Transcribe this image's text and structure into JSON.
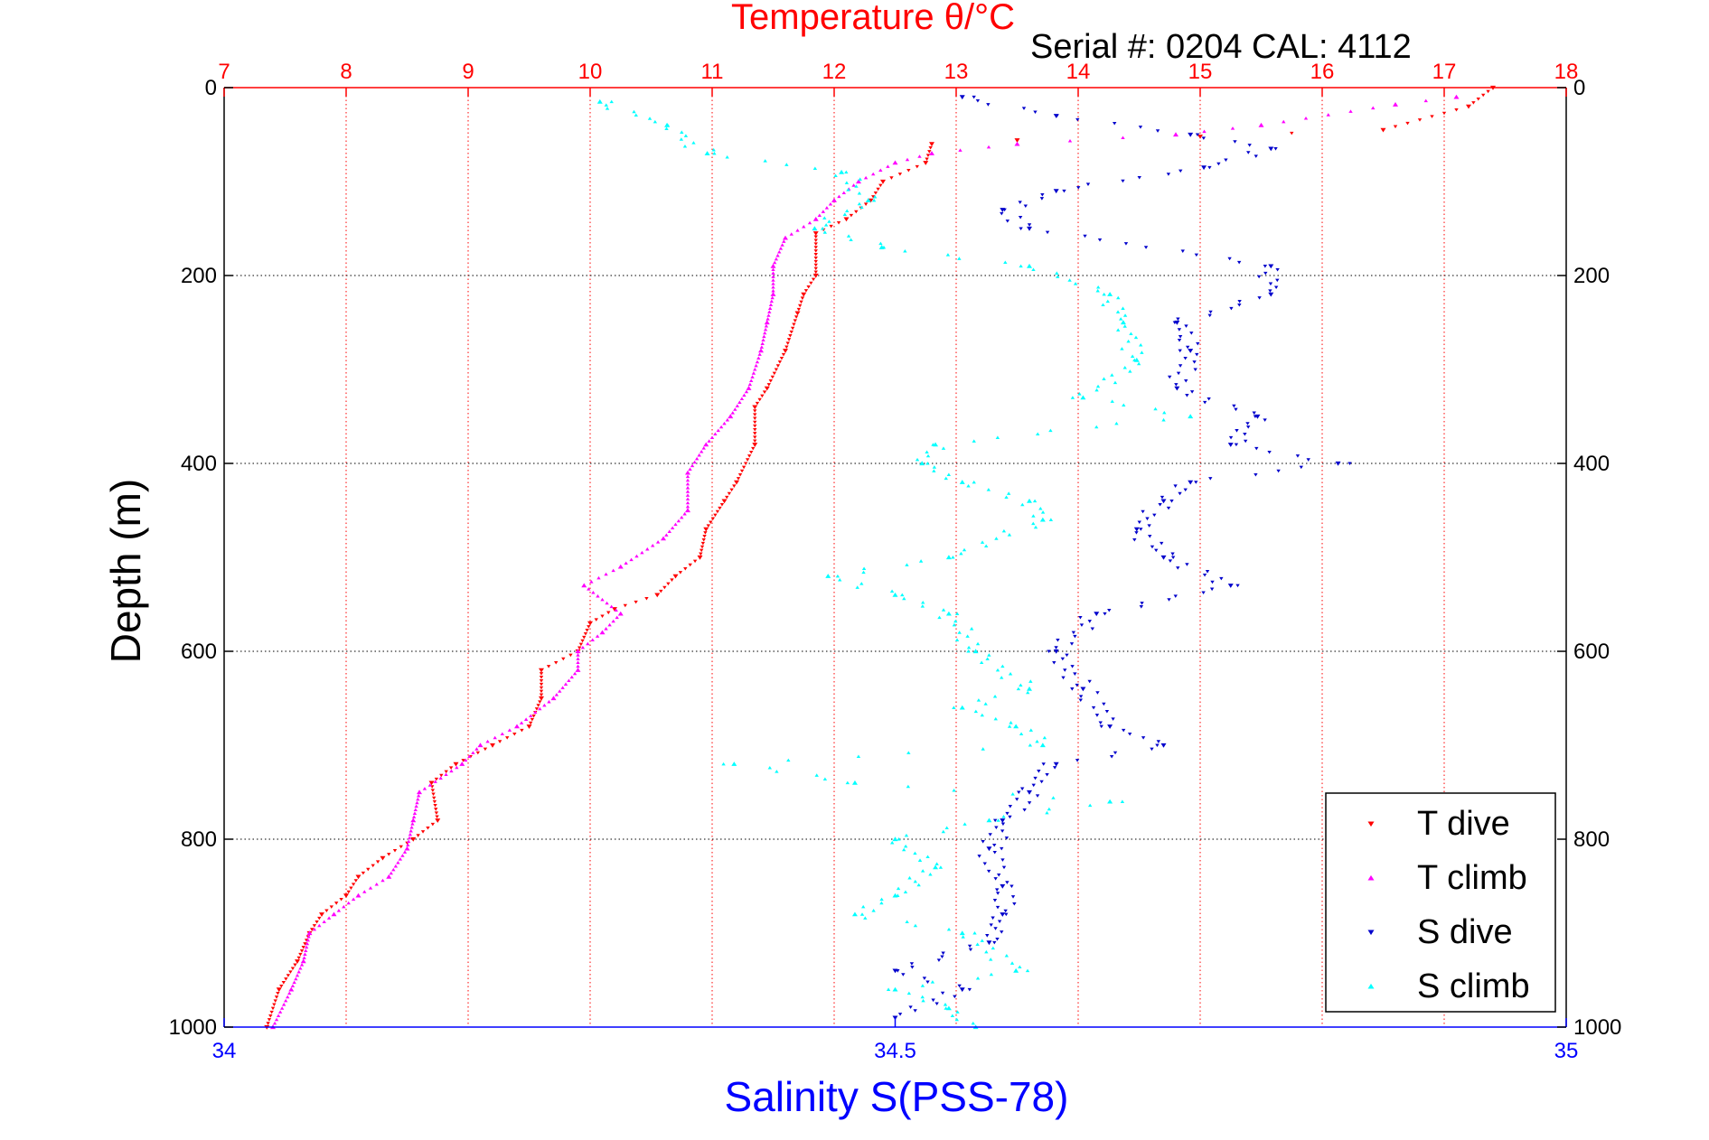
{
  "chart_data": {
    "type": "scatter",
    "title": "Temperature θ/°C",
    "subtitle": "Serial #: 0204  CAL: 4112",
    "ylabel": "Depth (m)",
    "xlabel": "Salinity S(PSS-78)",
    "grid": true,
    "legend_position": "bottom-right",
    "y_axis": {
      "reversed": true,
      "ylim": [
        0,
        1000
      ],
      "ticks": [
        0,
        200,
        400,
        600,
        800,
        1000
      ]
    },
    "top_axis": {
      "quantity": "temperature",
      "xlim": [
        7,
        18
      ],
      "ticks": [
        7,
        8,
        9,
        10,
        11,
        12,
        13,
        14,
        15,
        16,
        17,
        18
      ]
    },
    "bottom_axis": {
      "quantity": "salinity",
      "xlim": [
        34,
        35
      ],
      "ticks": [
        34,
        34.5,
        35
      ]
    },
    "colors": {
      "title": "#ff0000",
      "top_axis": "#ff0000",
      "bottom_axis": "#0000ff",
      "axes": "#000000"
    },
    "series": [
      {
        "name": "T dive",
        "axis": "top",
        "color": "#ff0000",
        "marker": "triangle-down",
        "points": [
          [
            17.4,
            0
          ],
          [
            17.2,
            20
          ],
          [
            16.5,
            45
          ],
          [
            15.0,
            52
          ],
          [
            13.5,
            56
          ],
          [
            12.8,
            60
          ],
          [
            12.75,
            80
          ],
          [
            12.4,
            100
          ],
          [
            12.3,
            120
          ],
          [
            12.1,
            140
          ],
          [
            11.85,
            155
          ],
          [
            11.85,
            200
          ],
          [
            11.75,
            220
          ],
          [
            11.7,
            240
          ],
          [
            11.6,
            280
          ],
          [
            11.45,
            320
          ],
          [
            11.35,
            340
          ],
          [
            11.35,
            380
          ],
          [
            11.2,
            420
          ],
          [
            11.1,
            440
          ],
          [
            10.95,
            470
          ],
          [
            10.9,
            500
          ],
          [
            10.7,
            520
          ],
          [
            10.55,
            540
          ],
          [
            10.2,
            555
          ],
          [
            10.0,
            570
          ],
          [
            9.9,
            600
          ],
          [
            9.6,
            620
          ],
          [
            9.6,
            650
          ],
          [
            9.5,
            680
          ],
          [
            9.2,
            700
          ],
          [
            8.9,
            720
          ],
          [
            8.7,
            740
          ],
          [
            8.75,
            780
          ],
          [
            8.55,
            800
          ],
          [
            8.3,
            820
          ],
          [
            8.1,
            840
          ],
          [
            8.0,
            860
          ],
          [
            7.8,
            880
          ],
          [
            7.7,
            900
          ],
          [
            7.6,
            930
          ],
          [
            7.45,
            960
          ],
          [
            7.35,
            1000
          ]
        ]
      },
      {
        "name": "T climb",
        "axis": "top",
        "color": "#ff00ff",
        "marker": "triangle-up",
        "points": [
          [
            17.1,
            10
          ],
          [
            16.6,
            18
          ],
          [
            15.5,
            40
          ],
          [
            14.8,
            50
          ],
          [
            13.5,
            60
          ],
          [
            12.8,
            70
          ],
          [
            12.5,
            80
          ],
          [
            12.2,
            100
          ],
          [
            12.0,
            120
          ],
          [
            11.85,
            140
          ],
          [
            11.6,
            160
          ],
          [
            11.5,
            190
          ],
          [
            11.5,
            220
          ],
          [
            11.45,
            250
          ],
          [
            11.4,
            280
          ],
          [
            11.3,
            320
          ],
          [
            11.15,
            350
          ],
          [
            10.95,
            380
          ],
          [
            10.8,
            410
          ],
          [
            10.8,
            450
          ],
          [
            10.6,
            480
          ],
          [
            10.25,
            510
          ],
          [
            9.95,
            530
          ],
          [
            10.25,
            560
          ],
          [
            10.1,
            580
          ],
          [
            9.9,
            600
          ],
          [
            9.9,
            620
          ],
          [
            9.7,
            650
          ],
          [
            9.4,
            680
          ],
          [
            9.1,
            700
          ],
          [
            8.95,
            720
          ],
          [
            8.6,
            750
          ],
          [
            8.55,
            780
          ],
          [
            8.5,
            810
          ],
          [
            8.35,
            840
          ],
          [
            8.1,
            860
          ],
          [
            7.9,
            880
          ],
          [
            7.7,
            900
          ],
          [
            7.65,
            930
          ],
          [
            7.55,
            960
          ],
          [
            7.4,
            1000
          ]
        ]
      },
      {
        "name": "S dive",
        "axis": "bottom",
        "color": "#0000cc",
        "marker": "triangle-down",
        "points": [
          [
            34.55,
            10
          ],
          [
            34.62,
            30
          ],
          [
            34.72,
            50
          ],
          [
            34.78,
            65
          ],
          [
            34.73,
            85
          ],
          [
            34.62,
            110
          ],
          [
            34.58,
            130
          ],
          [
            34.6,
            150
          ],
          [
            34.78,
            190
          ],
          [
            34.78,
            220
          ],
          [
            34.71,
            250
          ],
          [
            34.72,
            280
          ],
          [
            34.71,
            320
          ],
          [
            34.77,
            350
          ],
          [
            34.75,
            380
          ],
          [
            34.83,
            400
          ],
          [
            34.72,
            420
          ],
          [
            34.7,
            440
          ],
          [
            34.68,
            470
          ],
          [
            34.7,
            500
          ],
          [
            34.75,
            530
          ],
          [
            34.65,
            560
          ],
          [
            34.62,
            600
          ],
          [
            34.64,
            640
          ],
          [
            34.66,
            680
          ],
          [
            34.7,
            700
          ],
          [
            34.62,
            720
          ],
          [
            34.6,
            750
          ],
          [
            34.58,
            780
          ],
          [
            34.57,
            810
          ],
          [
            34.58,
            850
          ],
          [
            34.58,
            880
          ],
          [
            34.57,
            910
          ],
          [
            34.5,
            940
          ],
          [
            34.55,
            960
          ],
          [
            34.5,
            990
          ]
        ]
      },
      {
        "name": "S climb",
        "axis": "bottom",
        "color": "#00ffff",
        "marker": "triangle-up",
        "points": [
          [
            34.28,
            15
          ],
          [
            34.33,
            40
          ],
          [
            34.36,
            70
          ],
          [
            34.46,
            90
          ],
          [
            34.48,
            120
          ],
          [
            34.44,
            150
          ],
          [
            34.49,
            170
          ],
          [
            34.6,
            190
          ],
          [
            34.66,
            220
          ],
          [
            34.67,
            250
          ],
          [
            34.68,
            290
          ],
          [
            34.64,
            330
          ],
          [
            34.72,
            350
          ],
          [
            34.53,
            380
          ],
          [
            34.52,
            400
          ],
          [
            34.55,
            420
          ],
          [
            34.6,
            440
          ],
          [
            34.61,
            460
          ],
          [
            34.54,
            500
          ],
          [
            34.45,
            520
          ],
          [
            34.5,
            540
          ],
          [
            34.54,
            560
          ],
          [
            34.56,
            600
          ],
          [
            34.6,
            640
          ],
          [
            34.55,
            660
          ],
          [
            34.59,
            680
          ],
          [
            34.61,
            700
          ],
          [
            34.38,
            720
          ],
          [
            34.47,
            740
          ],
          [
            34.66,
            760
          ],
          [
            34.57,
            780
          ],
          [
            34.5,
            800
          ],
          [
            34.53,
            830
          ],
          [
            34.5,
            860
          ],
          [
            34.47,
            880
          ],
          [
            34.55,
            900
          ],
          [
            34.59,
            940
          ],
          [
            34.5,
            960
          ],
          [
            34.54,
            980
          ],
          [
            34.56,
            1000
          ]
        ]
      }
    ]
  }
}
